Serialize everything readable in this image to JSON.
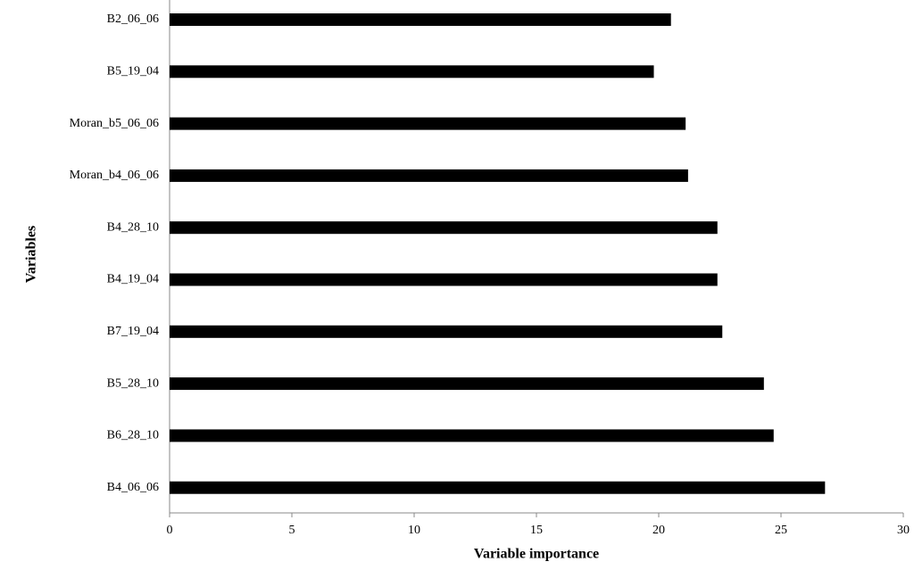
{
  "chart_data": {
    "type": "barh",
    "categories": [
      "B2_06_06",
      "B5_19_04",
      "Moran_b5_06_06",
      "Moran_b4_06_06",
      "B4_28_10",
      "B4_19_04",
      "B7_19_04",
      "B5_28_10",
      "B6_28_10",
      "B4_06_06"
    ],
    "values": [
      20.5,
      19.8,
      21.1,
      21.2,
      22.4,
      22.4,
      22.6,
      24.3,
      24.7,
      26.8
    ],
    "color": "#000000",
    "xlim": [
      0,
      30
    ],
    "xticks": [
      0,
      5,
      10,
      15,
      20,
      25,
      30
    ],
    "xlabel": "Variable importance",
    "ylabel": "Variables"
  }
}
